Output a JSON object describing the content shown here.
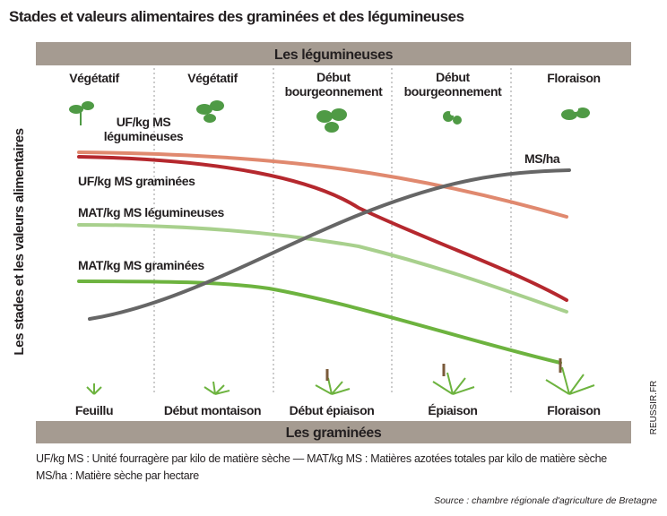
{
  "title": "Stades et valeurs alimentaires des graminées et des légumineuses",
  "top_band": "Les légumineuses",
  "top_stages": [
    [
      "Végétatif"
    ],
    [
      "Végétatif"
    ],
    [
      "Début",
      "bourgeonnement"
    ],
    [
      "Début",
      "bourgeonnement"
    ],
    [
      "Floraison"
    ]
  ],
  "y_axis_label": "Les stades et les valeurs alimentaires",
  "curve_labels": {
    "uf_legumineuses": [
      "UF/kg MS",
      "légumineuses"
    ],
    "uf_graminees": "UF/kg MS graminées",
    "mat_legumineuses": "MAT/kg MS légumineuses",
    "mat_graminees": "MAT/kg MS graminées",
    "ms_ha": "MS/ha"
  },
  "bottom_stages": [
    "Feuillu",
    "Début montaison",
    "Début épiaison",
    "Épiaison",
    "Floraison"
  ],
  "bottom_band": "Les graminées",
  "notes": [
    "UF/kg MS : Unité fourragère par kilo de matière sèche — MAT/kg MS : Matières azotées totales par kilo de matière sèche",
    "MS/ha : Matière sèche par hectare"
  ],
  "source": "Source : chambre régionale d'agriculture de Bretagne",
  "credit": "REUSSIR.FR"
}
